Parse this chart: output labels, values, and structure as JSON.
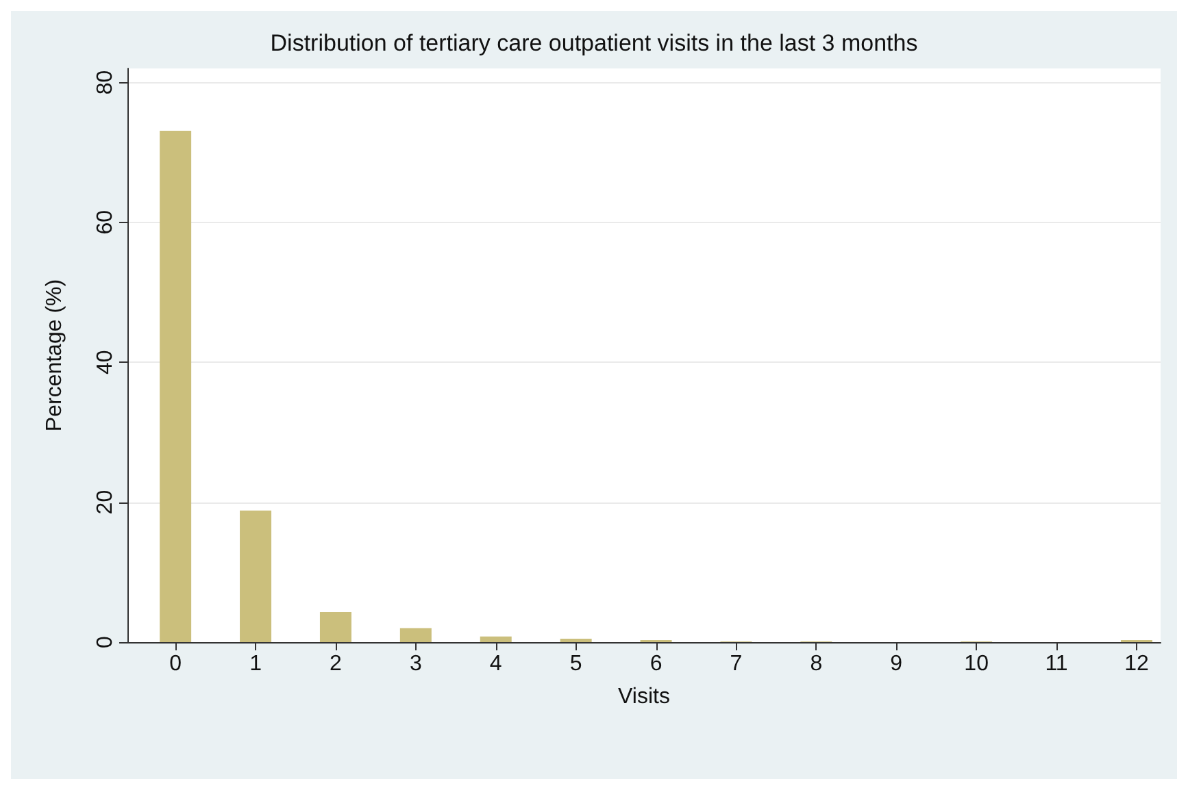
{
  "chart_data": {
    "type": "bar",
    "title": "Distribution of tertiary care outpatient visits in the last 3 months",
    "xlabel": "Visits",
    "ylabel": "Percentage (%)",
    "x": [
      0,
      1,
      2,
      3,
      4,
      5,
      6,
      7,
      8,
      9,
      10,
      11,
      12
    ],
    "values": [
      73.1,
      18.8,
      4.3,
      2.0,
      0.8,
      0.5,
      0.3,
      0.1,
      0.1,
      0,
      0.1,
      0,
      0.3
    ],
    "color": "#cbbf7c",
    "xlim": [
      -0.6,
      12.3
    ],
    "xticks": [
      0,
      1,
      2,
      3,
      4,
      5,
      6,
      7,
      8,
      9,
      10,
      11,
      12
    ],
    "ylim": [
      0,
      82
    ],
    "yticks": [
      0,
      20,
      40,
      60,
      80
    ],
    "grid": "y"
  }
}
